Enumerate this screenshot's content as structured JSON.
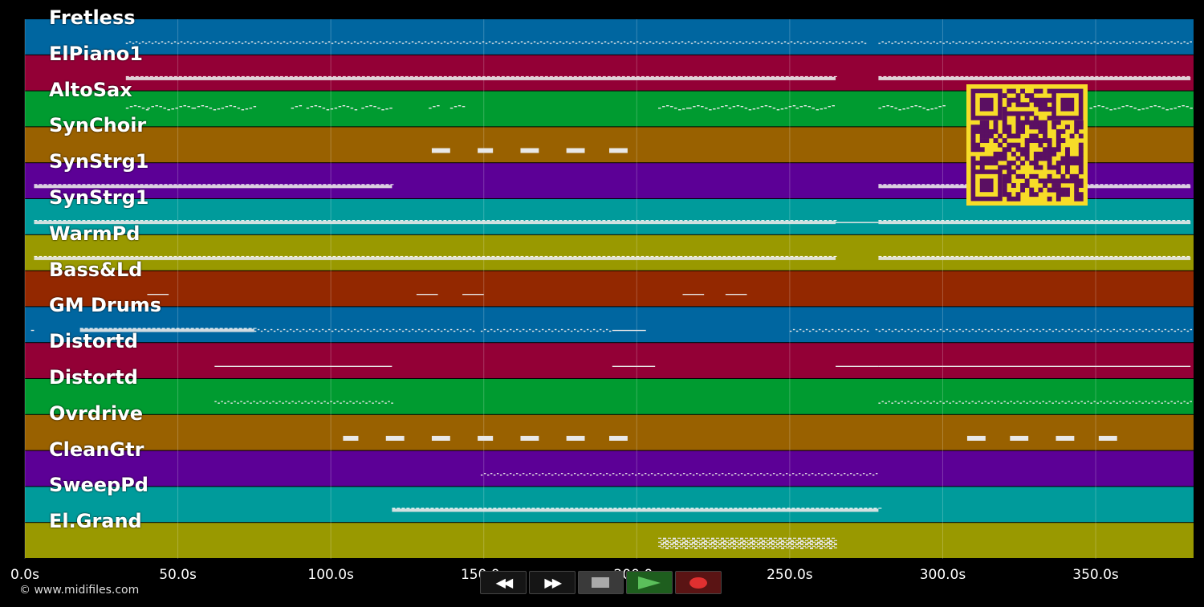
{
  "tracks": [
    {
      "name": "Fretless",
      "color": "#0066a0",
      "notes": [
        [
          33,
          275,
          "trill"
        ],
        [
          279,
          381,
          "trill"
        ]
      ]
    },
    {
      "name": "ElPiano1",
      "color": "#930036",
      "notes": [
        [
          33,
          265,
          "dense"
        ],
        [
          279,
          381,
          "dense"
        ]
      ]
    },
    {
      "name": "AltoSax",
      "color": "#009b30",
      "notes": [
        [
          33,
          40,
          "phrase"
        ],
        [
          40,
          55,
          "phrase"
        ],
        [
          55,
          75,
          "phrase"
        ],
        [
          87,
          90,
          "phrase"
        ],
        [
          92,
          108,
          "phrase"
        ],
        [
          110,
          120,
          "phrase"
        ],
        [
          132,
          135,
          "phrase"
        ],
        [
          139,
          143,
          "phrase"
        ],
        [
          207,
          217,
          "phrase"
        ],
        [
          217,
          230,
          "phrase"
        ],
        [
          230,
          252,
          "phrase"
        ],
        [
          252,
          265,
          "phrase"
        ],
        [
          279,
          300,
          "phrase"
        ],
        [
          348,
          381,
          "phrase"
        ]
      ]
    },
    {
      "name": "SynChoir",
      "color": "#996100",
      "notes": [
        [
          133,
          139,
          "block"
        ],
        [
          148,
          153,
          "block"
        ],
        [
          162,
          168,
          "block"
        ],
        [
          177,
          183,
          "block"
        ],
        [
          191,
          197,
          "block"
        ]
      ]
    },
    {
      "name": "SynStrg1",
      "color": "#5c0096",
      "notes": [
        [
          3,
          120,
          "dense"
        ],
        [
          279,
          381,
          "dense"
        ]
      ]
    },
    {
      "name": "SynStrg1",
      "color": "#009b9b",
      "notes": [
        [
          3,
          265,
          "dense"
        ],
        [
          265,
          279,
          "line"
        ],
        [
          279,
          381,
          "dense"
        ]
      ]
    },
    {
      "name": "WarmPd",
      "color": "#999900",
      "notes": [
        [
          3,
          265,
          "dense"
        ],
        [
          279,
          381,
          "dense"
        ]
      ]
    },
    {
      "name": "Bass&Ld",
      "color": "#932800",
      "notes": [
        [
          40,
          47,
          "line"
        ],
        [
          128,
          135,
          "line"
        ],
        [
          143,
          150,
          "line"
        ],
        [
          215,
          222,
          "line"
        ],
        [
          229,
          236,
          "line"
        ]
      ]
    },
    {
      "name": "GM Drums",
      "color": "#0066a0",
      "notes": [
        [
          2,
          3,
          "line"
        ],
        [
          18,
          75,
          "dense"
        ],
        [
          75,
          147,
          "trill"
        ],
        [
          149,
          192,
          "trill"
        ],
        [
          192,
          203,
          "line"
        ],
        [
          250,
          276,
          "trill"
        ],
        [
          278,
          381,
          "trill"
        ]
      ]
    },
    {
      "name": "Distortd",
      "color": "#930036",
      "notes": [
        [
          62,
          120,
          "line"
        ],
        [
          192,
          206,
          "line"
        ],
        [
          265,
          279,
          "line"
        ],
        [
          279,
          381,
          "line"
        ]
      ]
    },
    {
      "name": "Distortd",
      "color": "#009b30",
      "notes": [
        [
          62,
          120,
          "trill"
        ],
        [
          279,
          381,
          "trill"
        ]
      ]
    },
    {
      "name": "Ovrdrive",
      "color": "#996100",
      "notes": [
        [
          104,
          109,
          "block"
        ],
        [
          118,
          124,
          "block"
        ],
        [
          133,
          139,
          "block"
        ],
        [
          148,
          153,
          "block"
        ],
        [
          162,
          168,
          "block"
        ],
        [
          177,
          183,
          "block"
        ],
        [
          191,
          197,
          "block"
        ],
        [
          308,
          314,
          "block"
        ],
        [
          322,
          328,
          "block"
        ],
        [
          337,
          343,
          "block"
        ],
        [
          351,
          357,
          "block"
        ]
      ]
    },
    {
      "name": "CleanGtr",
      "color": "#5c0096",
      "notes": [
        [
          149,
          279,
          "trill"
        ]
      ]
    },
    {
      "name": "SweepPd",
      "color": "#009b9b",
      "notes": [
        [
          120,
          279,
          "dense"
        ]
      ]
    },
    {
      "name": "El.Grand",
      "color": "#999900",
      "notes": [
        [
          207,
          265,
          "cluster"
        ]
      ]
    }
  ],
  "time_axis": {
    "min_s": 0,
    "max_s": 382,
    "ticks": [
      {
        "value": 0,
        "label": "0.0s"
      },
      {
        "value": 50,
        "label": "50.0s"
      },
      {
        "value": 100,
        "label": "100.0s"
      },
      {
        "value": 150,
        "label": "150.0s"
      },
      {
        "value": 200,
        "label": "200.0s"
      },
      {
        "value": 250,
        "label": "250.0s"
      },
      {
        "value": 300,
        "label": "300.0s"
      },
      {
        "value": 350,
        "label": "350.0s"
      }
    ]
  },
  "copyright": "© www.midifiles.com",
  "transport": {
    "rewind_glyph": "◀◀",
    "forward_glyph": "▶▶"
  },
  "qr_code": {
    "color": "#f7dc28",
    "module_color": "#5a0f62"
  }
}
